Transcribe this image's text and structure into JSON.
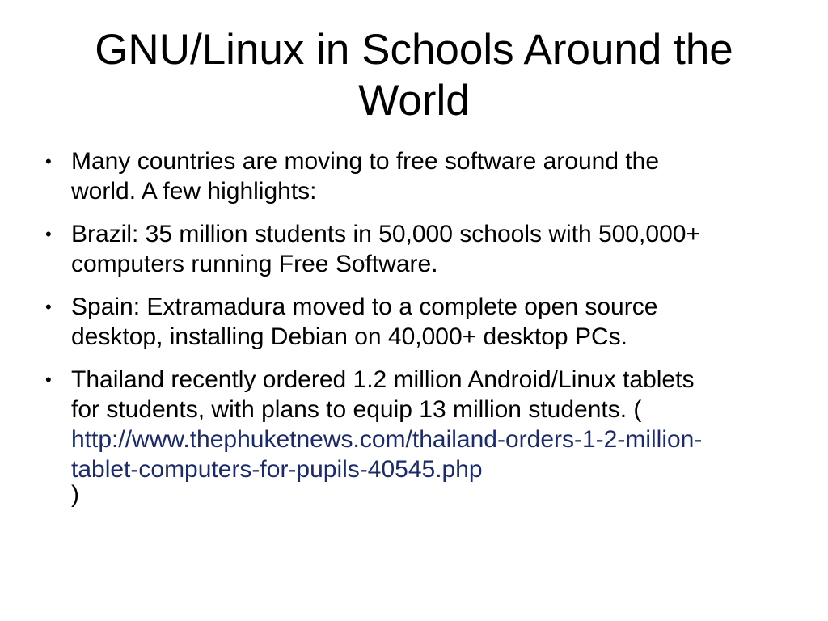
{
  "slide": {
    "title_lines": [
      "GNU/Linux in Schools Around the",
      "World"
    ],
    "bullets": [
      {
        "lines": [
          "Many countries are moving to free software around the",
          "world. A few highlights:"
        ]
      },
      {
        "lines": [
          "Brazil: 35 million students in 50,000 schools with 500,000+",
          "computers running Free Software."
        ]
      },
      {
        "lines": [
          "Spain: Extramadura moved to a complete open source",
          "desktop, installing Debian on 40,000+ desktop PCs."
        ]
      },
      {
        "lines": [
          "Thailand recently ordered 1.2 million Android/Linux tablets",
          "for students, with plans to equip 13 million students. ("
        ],
        "link_lines": [
          "http://www.thephuketnews.com/thailand-orders-1-2-million-",
          "tablet-computers-for-pupils-40545.php"
        ],
        "closing": ")"
      }
    ],
    "bullet_glyph": "•",
    "link_color": "#1b2a6b"
  }
}
